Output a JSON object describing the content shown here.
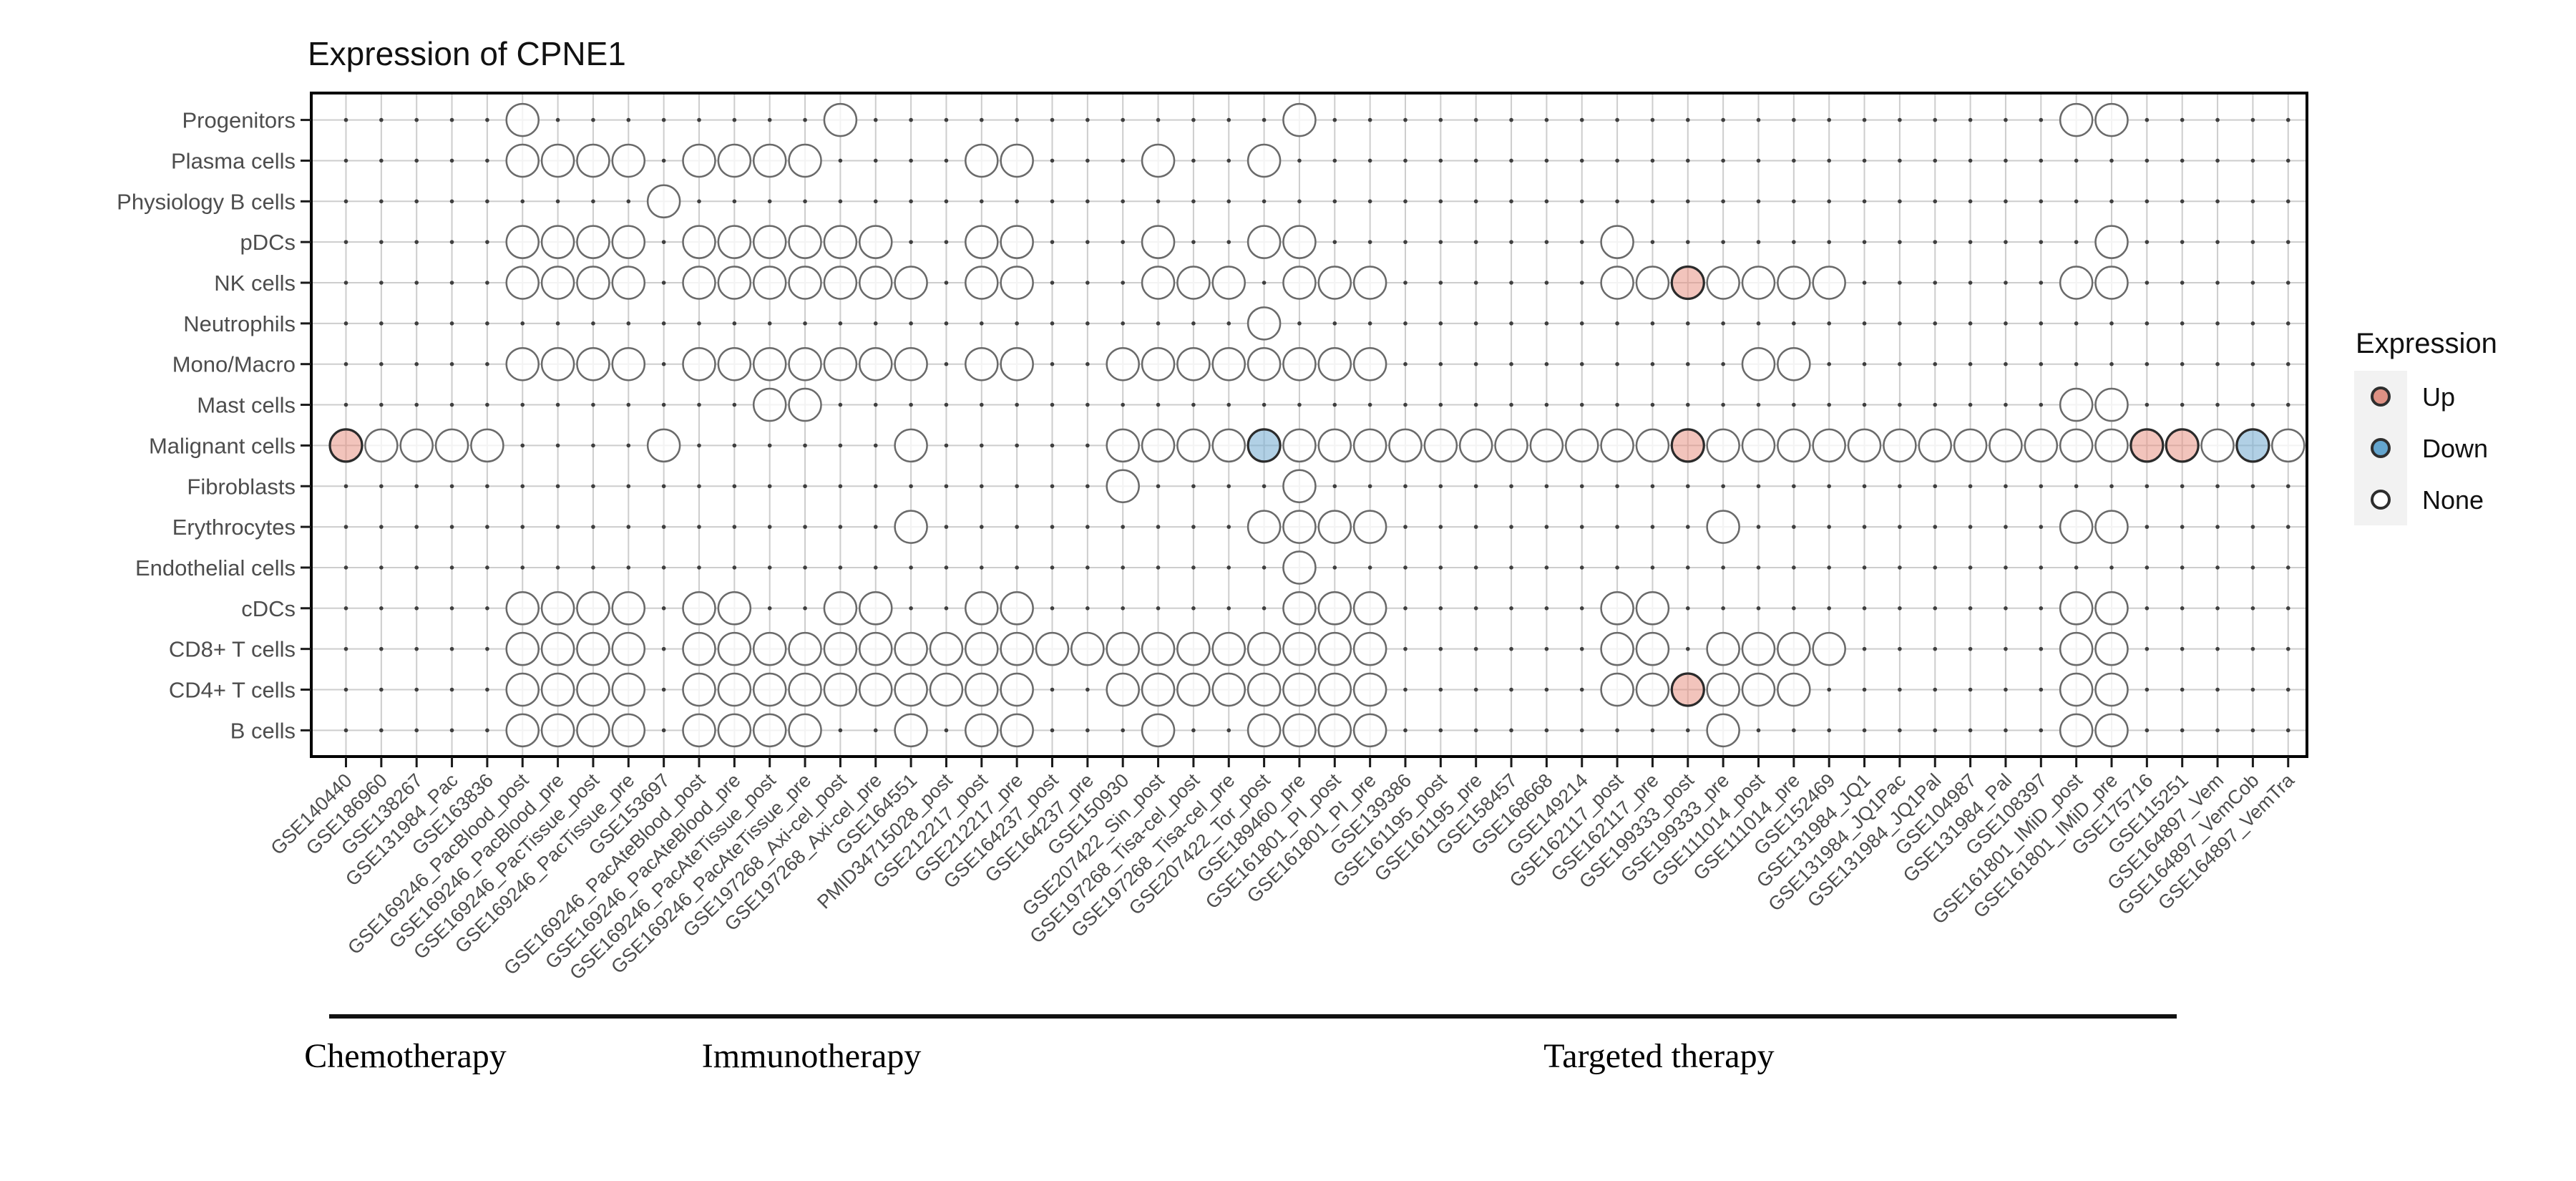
{
  "chart_data": {
    "type": "heatmap",
    "title": "Expression of CPNE1",
    "legend": {
      "title": "Expression",
      "entries": [
        {
          "label": "Up",
          "color": "#DE9184"
        },
        {
          "label": "Down",
          "color": "#64A5CE"
        },
        {
          "label": "None",
          "color": "#FFFFFF"
        }
      ]
    },
    "rows": [
      "Progenitors",
      "Plasma cells",
      "Physiology B cells",
      "pDCs",
      "NK cells",
      "Neutrophils",
      "Mono/Macro",
      "Mast cells",
      "Malignant cells",
      "Fibroblasts",
      "Erythrocytes",
      "Endothelial cells",
      "cDCs",
      "CD8+ T cells",
      "CD4+ T cells",
      "B cells"
    ],
    "columns": [
      "GSE140440",
      "GSE186960",
      "GSE138267",
      "GSE131984_Pac",
      "GSE163836",
      "GSE169246_PacBlood_post",
      "GSE169246_PacBlood_pre",
      "GSE169246_PacTissue_post",
      "GSE169246_PacTissue_pre",
      "GSE153697",
      "GSE169246_PacAteBlood_post",
      "GSE169246_PacAteBlood_pre",
      "GSE169246_PacAteTissue_post",
      "GSE169246_PacAteTissue_pre",
      "GSE197268_Axi-cel_post",
      "GSE197268_Axi-cel_pre",
      "GSE164551",
      "PMID34715028_post",
      "GSE212217_post",
      "GSE212217_pre",
      "GSE164237_post",
      "GSE164237_pre",
      "GSE150930",
      "GSE207422_Sin_post",
      "GSE197268_Tisa-cel_post",
      "GSE197268_Tisa-cel_pre",
      "GSE207422_Tor_post",
      "GSE189460_pre",
      "GSE161801_PI_post",
      "GSE161801_PI_pre",
      "GSE139386",
      "GSE161195_post",
      "GSE161195_pre",
      "GSE158457",
      "GSE168668",
      "GSE149214",
      "GSE162117_post",
      "GSE162117_pre",
      "GSE199333_post",
      "GSE199333_pre",
      "GSE111014_post",
      "GSE111014_pre",
      "GSE152469",
      "GSE131984_JQ1",
      "GSE131984_JQ1Pac",
      "GSE131984_JQ1Pal",
      "GSE104987",
      "GSE131984_Pal",
      "GSE108397",
      "GSE161801_IMiD_post",
      "GSE161801_IMiD_pre",
      "GSE175716",
      "GSE115251",
      "GSE164897_Vem",
      "GSE164897_VemCob",
      "GSE164897_VemTra"
    ],
    "groups": [
      {
        "label": "Chemotherapy",
        "from": 1,
        "to": 4
      },
      {
        "label": "Immunotherapy",
        "from": 5,
        "to": 23
      },
      {
        "label": "Targeted therapy",
        "from": 24,
        "to": 52
      }
    ],
    "points": [
      {
        "row": "Progenitors",
        "up": [],
        "down": [],
        "none": [
          6,
          15,
          28,
          50,
          51
        ]
      },
      {
        "row": "Plasma cells",
        "up": [],
        "down": [],
        "none": [
          6,
          7,
          8,
          9,
          11,
          12,
          13,
          14,
          19,
          20,
          24,
          27
        ]
      },
      {
        "row": "Physiology B cells",
        "up": [],
        "down": [],
        "none": [
          10
        ]
      },
      {
        "row": "pDCs",
        "up": [],
        "down": [],
        "none": [
          6,
          7,
          8,
          9,
          11,
          12,
          13,
          14,
          15,
          16,
          19,
          20,
          24,
          27,
          28,
          37,
          51
        ]
      },
      {
        "row": "NK cells",
        "up": [
          39
        ],
        "down": [],
        "none": [
          6,
          7,
          8,
          9,
          11,
          12,
          13,
          14,
          15,
          16,
          17,
          19,
          20,
          24,
          25,
          26,
          28,
          29,
          30,
          37,
          38,
          40,
          41,
          42,
          43,
          50,
          51
        ]
      },
      {
        "row": "Neutrophils",
        "up": [],
        "down": [],
        "none": [
          27
        ]
      },
      {
        "row": "Mono/Macro",
        "up": [],
        "down": [],
        "none": [
          6,
          7,
          8,
          9,
          11,
          12,
          13,
          14,
          15,
          16,
          17,
          19,
          20,
          23,
          24,
          25,
          26,
          27,
          28,
          29,
          30,
          41,
          42
        ]
      },
      {
        "row": "Mast cells",
        "up": [],
        "down": [],
        "none": [
          13,
          14,
          50,
          51
        ]
      },
      {
        "row": "Malignant cells",
        "up": [
          1,
          39,
          52,
          53
        ],
        "down": [
          27,
          55
        ],
        "none": [
          2,
          3,
          4,
          5,
          10,
          17,
          23,
          24,
          25,
          26,
          28,
          29,
          30,
          31,
          32,
          33,
          34,
          35,
          36,
          37,
          38,
          40,
          41,
          42,
          43,
          44,
          45,
          46,
          47,
          48,
          49,
          50,
          51,
          54,
          56
        ]
      },
      {
        "row": "Fibroblasts",
        "up": [],
        "down": [],
        "none": [
          23,
          28
        ]
      },
      {
        "row": "Erythrocytes",
        "up": [],
        "down": [],
        "none": [
          17,
          27,
          28,
          29,
          30,
          40,
          50,
          51
        ]
      },
      {
        "row": "Endothelial cells",
        "up": [],
        "down": [],
        "none": [
          28
        ]
      },
      {
        "row": "cDCs",
        "up": [],
        "down": [],
        "none": [
          6,
          7,
          8,
          9,
          11,
          12,
          15,
          16,
          19,
          20,
          28,
          29,
          30,
          37,
          38,
          50,
          51
        ]
      },
      {
        "row": "CD8+ T cells",
        "up": [],
        "down": [],
        "none": [
          6,
          7,
          8,
          9,
          11,
          12,
          13,
          14,
          15,
          16,
          17,
          18,
          19,
          20,
          21,
          22,
          23,
          24,
          25,
          26,
          27,
          28,
          29,
          30,
          37,
          38,
          40,
          41,
          42,
          43,
          50,
          51
        ]
      },
      {
        "row": "CD4+ T cells",
        "up": [
          39
        ],
        "down": [],
        "none": [
          6,
          7,
          8,
          9,
          11,
          12,
          13,
          14,
          15,
          16,
          17,
          18,
          19,
          20,
          23,
          24,
          25,
          26,
          27,
          28,
          29,
          30,
          37,
          38,
          40,
          41,
          42,
          50,
          51
        ]
      },
      {
        "row": "B cells",
        "up": [],
        "down": [],
        "none": [
          6,
          7,
          8,
          9,
          11,
          12,
          13,
          14,
          17,
          19,
          20,
          24,
          27,
          28,
          29,
          30,
          40,
          50,
          51
        ]
      }
    ],
    "colors": {
      "up_fill": "#E89485",
      "down_fill": "#7DB0D4",
      "none_stroke": "#6A6A6A",
      "colored_stroke": "#2B2B2B",
      "grid": "#CDCDCD",
      "grid_dot": "#3F3F3F",
      "axis_text": "#4D4D4D"
    },
    "axes": {
      "x_tick_angle": 45,
      "grid": true,
      "legend_position": "right"
    }
  }
}
